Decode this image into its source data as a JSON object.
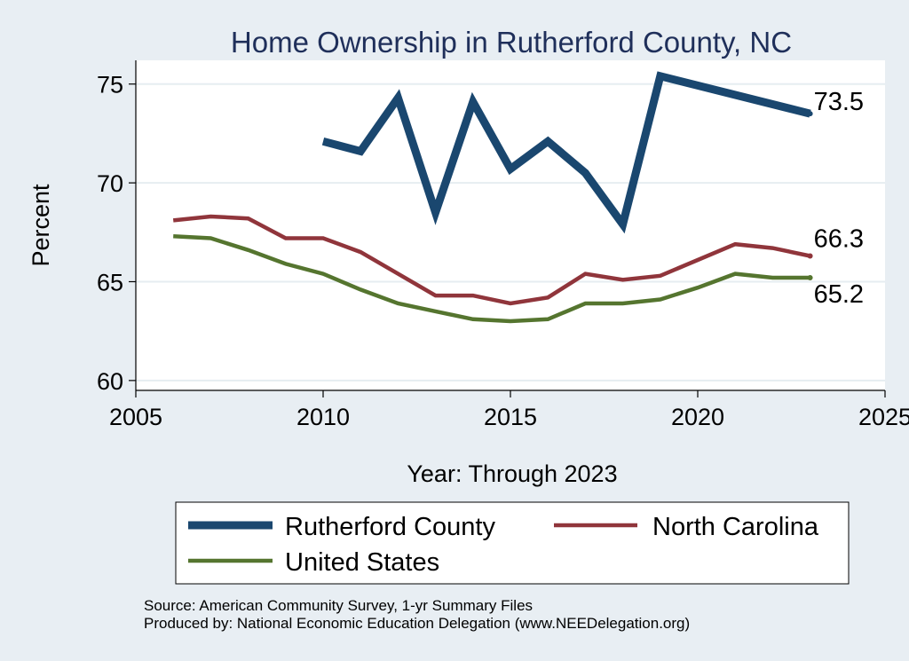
{
  "chart_data": {
    "type": "line",
    "title": "Home Ownership in Rutherford County, NC",
    "xlabel": "Year: Through 2023",
    "ylabel": "Percent",
    "xlim": [
      2005,
      2025
    ],
    "ylim": [
      59.5,
      76.2
    ],
    "xticks": [
      2005,
      2010,
      2015,
      2020,
      2025
    ],
    "yticks": [
      60,
      65,
      70,
      75
    ],
    "grid": true,
    "series": [
      {
        "name": "Rutherford County",
        "color": "#1a476f",
        "end_label": "73.5",
        "points": [
          [
            2010,
            72.1
          ],
          [
            2011,
            71.6
          ],
          [
            2012,
            74.3
          ],
          [
            2013,
            68.5
          ],
          [
            2014,
            74.1
          ],
          [
            2015,
            70.7
          ],
          [
            2016,
            72.1
          ],
          [
            2017,
            70.5
          ],
          [
            2018,
            67.9
          ],
          [
            2019,
            75.4
          ],
          [
            2023,
            73.5
          ]
        ]
      },
      {
        "name": "North Carolina",
        "color": "#90353b",
        "end_label": "66.3",
        "points": [
          [
            2006,
            68.1
          ],
          [
            2007,
            68.3
          ],
          [
            2008,
            68.2
          ],
          [
            2009,
            67.2
          ],
          [
            2010,
            67.2
          ],
          [
            2011,
            66.5
          ],
          [
            2012,
            65.4
          ],
          [
            2013,
            64.3
          ],
          [
            2014,
            64.3
          ],
          [
            2015,
            63.9
          ],
          [
            2016,
            64.2
          ],
          [
            2017,
            65.4
          ],
          [
            2018,
            65.1
          ],
          [
            2019,
            65.3
          ],
          [
            2020,
            66.1
          ],
          [
            2021,
            66.9
          ],
          [
            2022,
            66.7
          ],
          [
            2023,
            66.3
          ]
        ]
      },
      {
        "name": "United States",
        "color": "#55752f",
        "end_label": "65.2",
        "points": [
          [
            2006,
            67.3
          ],
          [
            2007,
            67.2
          ],
          [
            2008,
            66.6
          ],
          [
            2009,
            65.9
          ],
          [
            2010,
            65.4
          ],
          [
            2011,
            64.6
          ],
          [
            2012,
            63.9
          ],
          [
            2013,
            63.5
          ],
          [
            2014,
            63.1
          ],
          [
            2015,
            63.0
          ],
          [
            2016,
            63.1
          ],
          [
            2017,
            63.9
          ],
          [
            2018,
            63.9
          ],
          [
            2019,
            64.1
          ],
          [
            2020,
            64.7
          ],
          [
            2021,
            65.4
          ],
          [
            2022,
            65.2
          ],
          [
            2023,
            65.2
          ]
        ]
      }
    ]
  },
  "footer": {
    "source": "Source: American Community Survey, 1-yr Summary Files",
    "produced_by": "Produced by: National Economic Education Delegation (www.NEEDelegation.org)"
  }
}
